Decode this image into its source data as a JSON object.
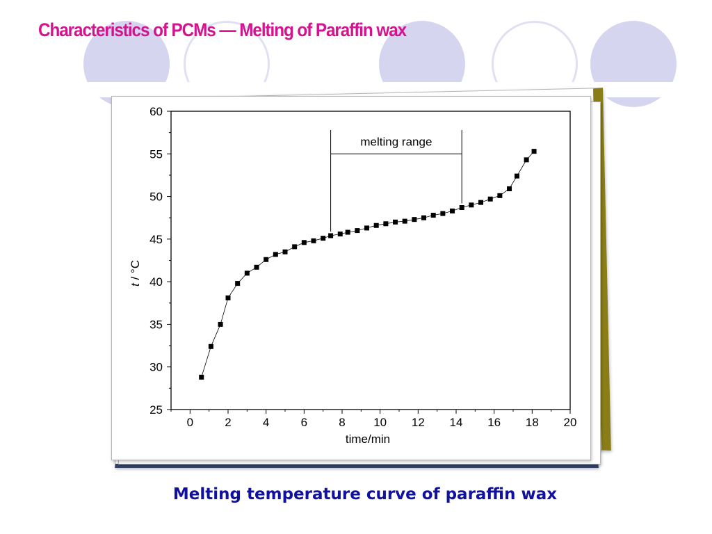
{
  "slide": {
    "title": "Characteristics of PCMs —  Melting of Paraffin wax",
    "caption": "Melting temperature curve of paraffin wax"
  },
  "colors": {
    "title": "#d4138f",
    "caption": "#1111a0",
    "circle_fill": "#d5d5ef",
    "circle_ring": "#e0e0f2",
    "frame_olive": "#8a7d18",
    "frame_navy": "#33446a",
    "marker": "#000000"
  },
  "chart_data": {
    "type": "scatter",
    "xlabel": "time/min",
    "ylabel_italic": "t",
    "ylabel_rest": " / °C",
    "xlim": [
      -1,
      20
    ],
    "ylim": [
      25,
      60
    ],
    "xticks": [
      0,
      2,
      4,
      6,
      8,
      10,
      12,
      14,
      16,
      18,
      20
    ],
    "yticks": [
      25,
      30,
      35,
      40,
      45,
      50,
      55,
      60
    ],
    "grid": false,
    "markers": "filled squares connected by thin line",
    "x": [
      0.6,
      1.1,
      1.6,
      2.0,
      2.5,
      3.0,
      3.5,
      4.0,
      4.5,
      5.0,
      5.5,
      6.0,
      6.5,
      7.0,
      7.4,
      7.9,
      8.3,
      8.8,
      9.3,
      9.8,
      10.3,
      10.8,
      11.3,
      11.8,
      12.3,
      12.8,
      13.3,
      13.8,
      14.3,
      14.8,
      15.3,
      15.8,
      16.3,
      16.8,
      17.2,
      17.7,
      18.1
    ],
    "y": [
      28.8,
      32.4,
      35.0,
      38.1,
      39.8,
      41.0,
      41.7,
      42.6,
      43.2,
      43.5,
      44.1,
      44.6,
      44.8,
      45.1,
      45.4,
      45.6,
      45.8,
      46.0,
      46.3,
      46.6,
      46.8,
      47.0,
      47.1,
      47.3,
      47.5,
      47.8,
      48.0,
      48.3,
      48.7,
      49.0,
      49.3,
      49.7,
      50.1,
      50.9,
      52.4,
      54.3,
      55.3
    ],
    "annotations": [
      {
        "text": "melting range",
        "x_start": 7.4,
        "x_end": 14.3,
        "bar_y": 55.0,
        "top_y": 57.8
      }
    ]
  }
}
